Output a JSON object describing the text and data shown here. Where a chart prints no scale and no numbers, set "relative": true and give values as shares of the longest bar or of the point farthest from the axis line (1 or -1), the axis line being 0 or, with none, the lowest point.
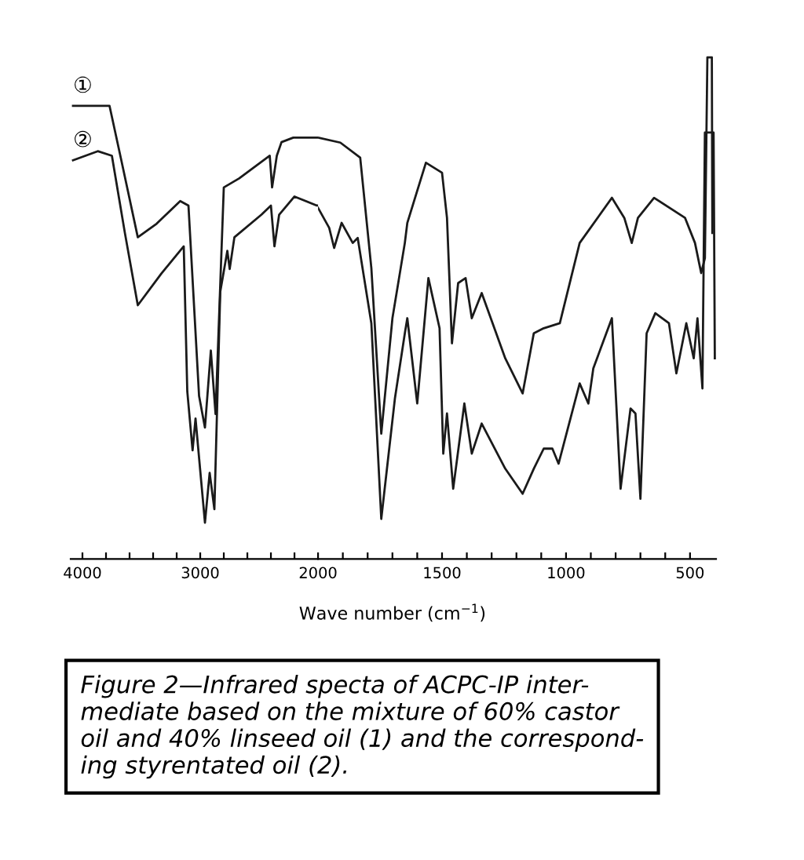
{
  "chart_data": [
    {
      "type": "line",
      "relative": true,
      "grid": false,
      "legend": false,
      "xlim": [
        4100,
        2000
      ],
      "xticks": [
        4000,
        {
          "value": 3800,
          "label": null
        },
        {
          "value": 3600,
          "label": null
        },
        {
          "value": 3400,
          "label": null
        },
        {
          "value": 3200,
          "label": null
        },
        3000,
        {
          "value": 2800,
          "label": null
        },
        {
          "value": 2600,
          "label": null
        },
        {
          "value": 2400,
          "label": null
        },
        {
          "value": 2200,
          "label": null
        }
      ],
      "series": [
        {
          "name": "①",
          "color": "#1a1a1a",
          "x": [
            4080,
            3770,
            3670,
            3530,
            3370,
            3170,
            3100,
            3010,
            2960,
            2910,
            2870,
            2800,
            2670,
            2410,
            2390,
            2350,
            2310,
            2210,
            2000
          ],
          "values": [
            1.0,
            1.0,
            0.88,
            0.71,
            0.74,
            0.79,
            0.78,
            0.36,
            0.29,
            0.46,
            0.32,
            0.82,
            0.84,
            0.89,
            0.82,
            0.89,
            0.92,
            0.93,
            0.93
          ]
        },
        {
          "name": "②",
          "color": "#1a1a1a",
          "x": [
            4080,
            3870,
            3750,
            3640,
            3530,
            3330,
            3140,
            3110,
            3065,
            3040,
            2960,
            2920,
            2880,
            2830,
            2770,
            2750,
            2710,
            2480,
            2400,
            2370,
            2330,
            2200,
            2010,
            2000
          ],
          "values": [
            0.88,
            0.9,
            0.89,
            0.72,
            0.56,
            0.63,
            0.69,
            0.37,
            0.24,
            0.31,
            0.08,
            0.19,
            0.11,
            0.59,
            0.68,
            0.64,
            0.71,
            0.76,
            0.78,
            0.69,
            0.76,
            0.8,
            0.78,
            0.78
          ]
        }
      ],
      "annotations": [
        "Figure 2—Infrared specta of ACPC-IP inter-\nmediate based on the mixture of 60% castor\noil and 40% linseed oil (1) and the correspond-\ning styrentated oil (2)."
      ]
    },
    {
      "type": "line",
      "relative": true,
      "grid": false,
      "legend": false,
      "xlabel": "Wave number (cm$^{−1}$)",
      "xlim": [
        2000,
        395
      ],
      "xticks": [
        2000,
        {
          "value": 1900,
          "label": null
        },
        {
          "value": 1800,
          "label": null
        },
        {
          "value": 1700,
          "label": null
        },
        {
          "value": 1600,
          "label": null
        },
        1500,
        {
          "value": 1400,
          "label": null
        },
        {
          "value": 1300,
          "label": null
        },
        {
          "value": 1200,
          "label": null
        },
        {
          "value": 1100,
          "label": null
        },
        1000,
        {
          "value": 900,
          "label": null
        },
        {
          "value": 800,
          "label": null
        },
        {
          "value": 700,
          "label": null
        },
        {
          "value": 600,
          "label": null
        },
        500
      ],
      "series": [
        {
          "color": "#1a1a1a",
          "x": [
            2000,
            1910,
            1830,
            1785,
            1745,
            1700,
            1650,
            1640,
            1565,
            1500,
            1480,
            1460,
            1435,
            1405,
            1380,
            1340,
            1245,
            1175,
            1130,
            1090,
            1025,
            945,
            815,
            765,
            735,
            710,
            645,
            520,
            480,
            455,
            440,
            430,
            412,
            410
          ],
          "values": [
            0.84,
            0.83,
            0.8,
            0.58,
            0.25,
            0.48,
            0.63,
            0.67,
            0.79,
            0.77,
            0.68,
            0.43,
            0.55,
            0.56,
            0.48,
            0.53,
            0.4,
            0.33,
            0.45,
            0.46,
            0.47,
            0.63,
            0.72,
            0.68,
            0.63,
            0.68,
            0.72,
            0.68,
            0.63,
            0.57,
            0.6,
            1.0,
            1.0,
            0.65
          ]
        },
        {
          "color": "#1a1a1a",
          "x": [
            2000,
            1955,
            1935,
            1905,
            1860,
            1840,
            1785,
            1745,
            1690,
            1650,
            1640,
            1600,
            1555,
            1510,
            1495,
            1480,
            1455,
            1410,
            1380,
            1340,
            1245,
            1175,
            1130,
            1090,
            1055,
            1030,
            945,
            910,
            890,
            815,
            780,
            740,
            720,
            700,
            675,
            640,
            585,
            555,
            515,
            485,
            470,
            450,
            440,
            405,
            400
          ],
          "values": [
            0.7,
            0.66,
            0.62,
            0.67,
            0.63,
            0.64,
            0.47,
            0.08,
            0.32,
            0.45,
            0.48,
            0.31,
            0.56,
            0.46,
            0.21,
            0.29,
            0.14,
            0.31,
            0.21,
            0.27,
            0.18,
            0.13,
            0.18,
            0.22,
            0.22,
            0.19,
            0.35,
            0.31,
            0.38,
            0.48,
            0.14,
            0.3,
            0.29,
            0.12,
            0.45,
            0.49,
            0.47,
            0.37,
            0.47,
            0.4,
            0.48,
            0.34,
            0.85,
            0.85,
            0.4
          ]
        }
      ]
    }
  ]
}
